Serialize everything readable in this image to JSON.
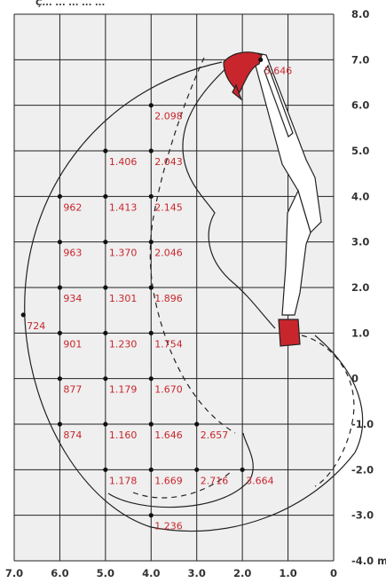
{
  "chart_data": {
    "type": "scatter",
    "title": "",
    "header_caption": "Ç... ... ... ... ...",
    "xlabel": "",
    "ylabel": "",
    "x_unit": "m",
    "y_unit": "m",
    "xlim": [
      0,
      7
    ],
    "ylim": [
      -4,
      8
    ],
    "x_ticks": [
      "7.0",
      "6.0",
      "5.0",
      "4.0",
      "3.0",
      "2.0",
      "1.0",
      "0"
    ],
    "y_ticks": [
      "8.0",
      "7.0",
      "6.0",
      "5.0",
      "4.0",
      "3.0",
      "2.0",
      "1.0",
      "0",
      "-1.0",
      "-2.0",
      "-3.0",
      "-4.0 m"
    ],
    "grid": true,
    "colors": {
      "grid": "#222222",
      "panel": "#efefef",
      "label": "#c8262c",
      "boom": "#ffffff",
      "boom_outline": "#222222",
      "bucket": "#c8262c"
    },
    "points": [
      {
        "x": 1.6,
        "y": 7.0,
        "label": "5.646"
      },
      {
        "x": 4.0,
        "y": 6.0,
        "label": "2.098"
      },
      {
        "x": 5.0,
        "y": 5.0,
        "label": "1.406"
      },
      {
        "x": 4.0,
        "y": 5.0,
        "label": "2.043"
      },
      {
        "x": 6.0,
        "y": 4.0,
        "label": "962"
      },
      {
        "x": 5.0,
        "y": 4.0,
        "label": "1.413"
      },
      {
        "x": 4.0,
        "y": 4.0,
        "label": "2.145"
      },
      {
        "x": 6.0,
        "y": 3.0,
        "label": "963"
      },
      {
        "x": 5.0,
        "y": 3.0,
        "label": "1.370"
      },
      {
        "x": 4.0,
        "y": 3.0,
        "label": "2.046"
      },
      {
        "x": 6.0,
        "y": 2.0,
        "label": "934"
      },
      {
        "x": 5.0,
        "y": 2.0,
        "label": "1.301"
      },
      {
        "x": 4.0,
        "y": 2.0,
        "label": "1.896"
      },
      {
        "x": 6.8,
        "y": 1.4,
        "label": "724"
      },
      {
        "x": 6.0,
        "y": 1.0,
        "label": "901"
      },
      {
        "x": 5.0,
        "y": 1.0,
        "label": "1.230"
      },
      {
        "x": 4.0,
        "y": 1.0,
        "label": "1.754"
      },
      {
        "x": 6.0,
        "y": 0.0,
        "label": "877"
      },
      {
        "x": 5.0,
        "y": 0.0,
        "label": "1.179"
      },
      {
        "x": 4.0,
        "y": 0.0,
        "label": "1.670"
      },
      {
        "x": 6.0,
        "y": -1.0,
        "label": "874"
      },
      {
        "x": 5.0,
        "y": -1.0,
        "label": "1.160"
      },
      {
        "x": 4.0,
        "y": -1.0,
        "label": "1.646"
      },
      {
        "x": 3.0,
        "y": -1.0,
        "label": "2.657"
      },
      {
        "x": 5.0,
        "y": -2.0,
        "label": "1.178"
      },
      {
        "x": 4.0,
        "y": -2.0,
        "label": "1.669"
      },
      {
        "x": 3.0,
        "y": -2.0,
        "label": "2.716"
      },
      {
        "x": 2.0,
        "y": -2.0,
        "label": "3.664"
      },
      {
        "x": 4.0,
        "y": -3.0,
        "label": "1.236"
      }
    ]
  }
}
